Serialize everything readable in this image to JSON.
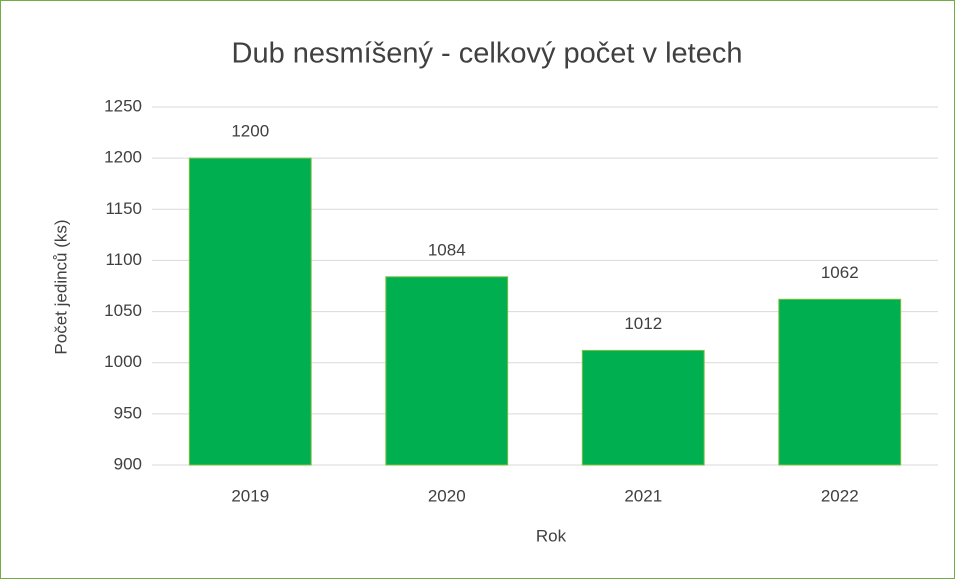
{
  "chart_data": {
    "type": "bar",
    "title": "Dub nesmíšený - celkový počet v letech",
    "x_label": "Rok",
    "y_label": "Počet jedinců (ks)",
    "categories": [
      "2019",
      "2020",
      "2021",
      "2022"
    ],
    "values": [
      1200,
      1084,
      1012,
      1062
    ],
    "color": "#00b050",
    "ylim": [
      900,
      1250
    ],
    "yticks": [
      900,
      950,
      1000,
      1050,
      1100,
      1150,
      1200,
      1250
    ],
    "grid": true
  }
}
